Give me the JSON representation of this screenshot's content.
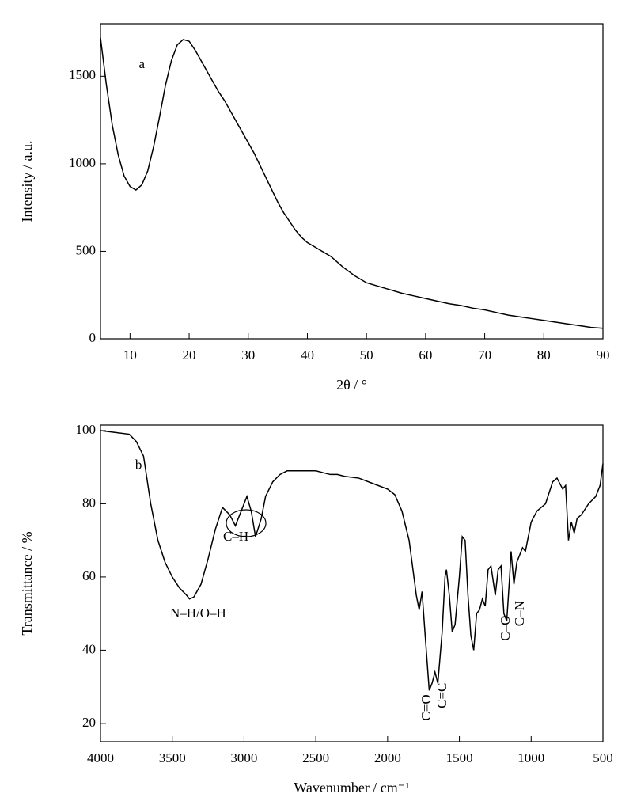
{
  "chart_data": [
    {
      "type": "line",
      "xlabel": "2θ / °",
      "ylabel": "Intensity / a.u.",
      "xlim": [
        5,
        90
      ],
      "ylim": [
        0,
        1800
      ],
      "xticks": [
        10,
        20,
        30,
        40,
        50,
        60,
        70,
        80,
        90
      ],
      "yticks": [
        0,
        500,
        1000,
        1500
      ],
      "x": [
        5,
        6,
        7,
        8,
        9,
        10,
        11,
        12,
        13,
        14,
        15,
        16,
        17,
        18,
        19,
        20,
        21,
        22,
        23,
        24,
        25,
        26,
        27,
        28,
        29,
        30,
        31,
        32,
        33,
        34,
        35,
        36,
        37,
        38,
        39,
        40,
        42,
        44,
        46,
        48,
        50,
        52,
        54,
        56,
        58,
        60,
        62,
        64,
        66,
        68,
        70,
        72,
        74,
        76,
        78,
        80,
        82,
        84,
        86,
        88,
        90
      ],
      "values": [
        1720,
        1450,
        1220,
        1050,
        930,
        870,
        850,
        880,
        960,
        1100,
        1270,
        1450,
        1590,
        1680,
        1710,
        1700,
        1650,
        1590,
        1530,
        1470,
        1410,
        1360,
        1300,
        1240,
        1180,
        1120,
        1060,
        990,
        920,
        850,
        780,
        720,
        670,
        620,
        580,
        550,
        510,
        470,
        410,
        360,
        320,
        300,
        280,
        260,
        245,
        230,
        215,
        200,
        190,
        175,
        165,
        150,
        135,
        125,
        115,
        105,
        95,
        85,
        75,
        65,
        60
      ],
      "color": "#000000",
      "annotations": [
        {
          "text": "a",
          "x": 12,
          "y": 1565
        }
      ]
    },
    {
      "type": "line",
      "xlabel": "Wavenumber / cm⁻¹",
      "ylabel": "Transmittance / %",
      "xlim": [
        4000,
        500
      ],
      "ylim": [
        15,
        101.5
      ],
      "xticks": [
        4000,
        3500,
        3000,
        2500,
        2000,
        1500,
        1000,
        500
      ],
      "yticks": [
        20,
        40,
        60,
        80,
        100
      ],
      "x": [
        4000,
        3900,
        3800,
        3750,
        3700,
        3650,
        3600,
        3550,
        3500,
        3450,
        3400,
        3380,
        3350,
        3300,
        3250,
        3200,
        3150,
        3100,
        3060,
        3020,
        2980,
        2950,
        2920,
        2880,
        2850,
        2800,
        2750,
        2700,
        2600,
        2500,
        2400,
        2350,
        2300,
        2200,
        2100,
        2000,
        1950,
        1900,
        1850,
        1800,
        1780,
        1760,
        1740,
        1710,
        1690,
        1670,
        1650,
        1620,
        1600,
        1590,
        1570,
        1550,
        1530,
        1500,
        1480,
        1460,
        1440,
        1420,
        1400,
        1380,
        1360,
        1340,
        1320,
        1300,
        1280,
        1250,
        1230,
        1210,
        1190,
        1170,
        1150,
        1140,
        1120,
        1100,
        1080,
        1060,
        1040,
        1000,
        960,
        900,
        850,
        820,
        780,
        760,
        740,
        720,
        700,
        680,
        650,
        600,
        550,
        520,
        500
      ],
      "values": [
        100,
        99.5,
        99,
        97,
        93,
        80,
        70,
        64,
        60,
        57,
        55,
        54,
        54.5,
        58,
        65,
        73,
        79,
        77,
        74,
        78,
        82,
        78,
        71,
        76,
        82,
        86,
        88,
        89,
        89,
        89,
        88,
        88,
        87.5,
        87,
        85.5,
        84,
        82.5,
        78,
        70,
        55,
        51,
        56,
        45,
        29,
        31,
        34,
        31,
        45,
        60,
        62,
        55,
        45,
        47,
        60,
        71,
        70,
        55,
        44,
        40,
        50,
        51,
        54,
        52,
        62,
        63,
        55,
        62,
        63,
        50,
        48,
        60,
        67,
        58,
        64,
        66,
        68,
        67,
        75,
        78,
        80,
        86,
        87,
        84,
        85,
        70,
        75,
        72,
        76,
        77,
        80,
        82,
        85,
        91
      ],
      "color": "#000000",
      "annotations": [
        {
          "text": "b",
          "x": 3735,
          "y": 90.3
        },
        {
          "text": "N–H/O–H",
          "x": 3320,
          "y": 49.8
        },
        {
          "text": "C–H",
          "x": 3057,
          "y": 70.8
        },
        {
          "text": "C=O",
          "x": 1723,
          "y": 24.3,
          "rotated": true
        },
        {
          "text": "C=C",
          "x": 1613,
          "y": 27.6,
          "rotated": true
        },
        {
          "text": "C–O",
          "x": 1172,
          "y": 46,
          "rotated": true
        },
        {
          "text": "C–N",
          "x": 1073,
          "y": 50,
          "rotated": true
        }
      ]
    }
  ]
}
